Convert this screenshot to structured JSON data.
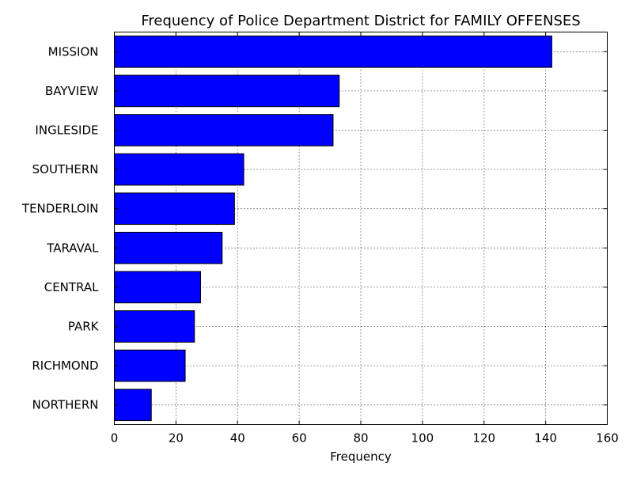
{
  "chart_data": {
    "type": "bar",
    "orientation": "horizontal",
    "title": "Frequency of Police Department District for FAMILY OFFENSES",
    "xlabel": "Frequency",
    "ylabel": "",
    "categories": [
      "MISSION",
      "BAYVIEW",
      "INGLESIDE",
      "SOUTHERN",
      "TENDERLOIN",
      "TARAVAL",
      "CENTRAL",
      "PARK",
      "RICHMOND",
      "NORTHERN"
    ],
    "values": [
      142,
      73,
      71,
      42,
      39,
      35,
      28,
      26,
      23,
      12
    ],
    "xlim": [
      0,
      160
    ],
    "xticks": [
      0,
      20,
      40,
      60,
      80,
      100,
      120,
      140,
      160
    ],
    "grid": true,
    "grid_style": "dotted",
    "bar_color": "#0000ff",
    "bar_edge_color": "#000000"
  }
}
